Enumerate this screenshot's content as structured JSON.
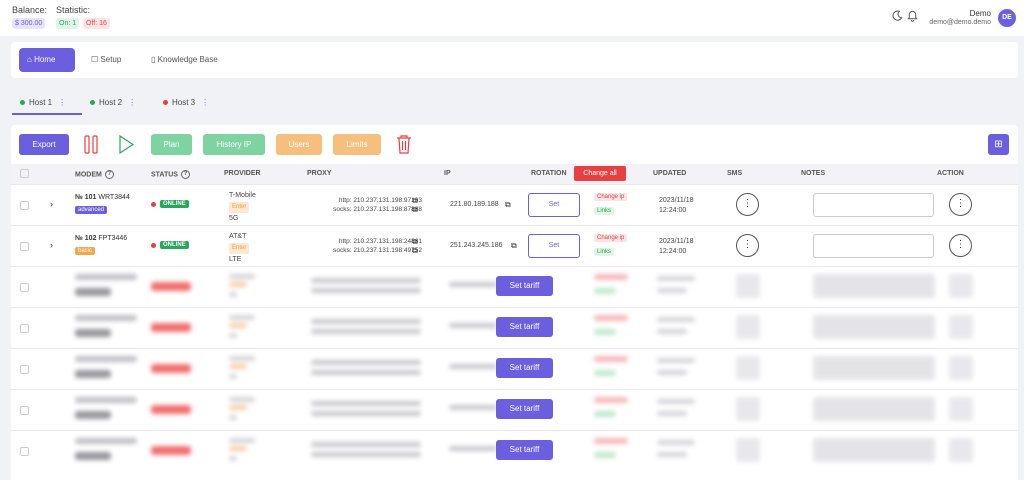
{
  "header": {
    "balance_label": "Balance:",
    "balance_value": "$ 300.00",
    "statistic_label": "Statistic:",
    "on": "On: 1",
    "off": "Off: 16",
    "user_name": "Demo",
    "user_email": "demo@demo.demo",
    "avatar": "DE",
    "icons": [
      "moon-icon",
      "bell-icon"
    ]
  },
  "nav": {
    "home": "Home",
    "setup": "Setup",
    "kb": "Knowledge Base"
  },
  "hosts": [
    {
      "label": "Host 1",
      "color": "#27a85a"
    },
    {
      "label": "Host 2",
      "color": "#27a85a"
    },
    {
      "label": "Host 3",
      "color": "#e84040"
    }
  ],
  "toolbar": {
    "export": "Export",
    "plan": "Plan",
    "history": "History IP",
    "users": "Users",
    "limits": "Limits"
  },
  "table": {
    "columns": {
      "modem": "MODEM",
      "status": "STATUS",
      "provider": "PROVIDER",
      "proxy": "PROXY",
      "ip": "IP",
      "rotation": "ROTATION",
      "change_all": "Change all",
      "updated": "UPDATED",
      "sms": "SMS",
      "notes": "NOTES",
      "action": "ACTION"
    },
    "rows": [
      {
        "num": "№ 101",
        "model": "WRT3844",
        "plan": "advanced",
        "plan_color": "#6b5fe0",
        "status": "ONLINE",
        "provider": "T-Mobile",
        "enter": "Enter",
        "net": "5G",
        "http": "http: 210.237.131.198:97103",
        "socks": "socks: 210.237.131.198:87888",
        "ip": "221.80.189.188",
        "set": "Set",
        "change_ip": "Change ip",
        "links": "Links",
        "date": "2023/11/18",
        "time": "12:24:00"
      },
      {
        "num": "№ 102",
        "model": "FPT3446",
        "plan": "basic",
        "plan_color": "#f3a64a",
        "status": "ONLINE",
        "provider": "AT&T",
        "enter": "Enter",
        "net": "LTE",
        "http": "http: 210.237.131.198:24881",
        "socks": "socks: 210.237.131.198:49752",
        "ip": "251.243.245.186",
        "set": "Set",
        "change_ip": "Change ip",
        "links": "Links",
        "date": "2023/11/18",
        "time": "12:24:00"
      }
    ],
    "set_tariff": "Set tariff"
  }
}
